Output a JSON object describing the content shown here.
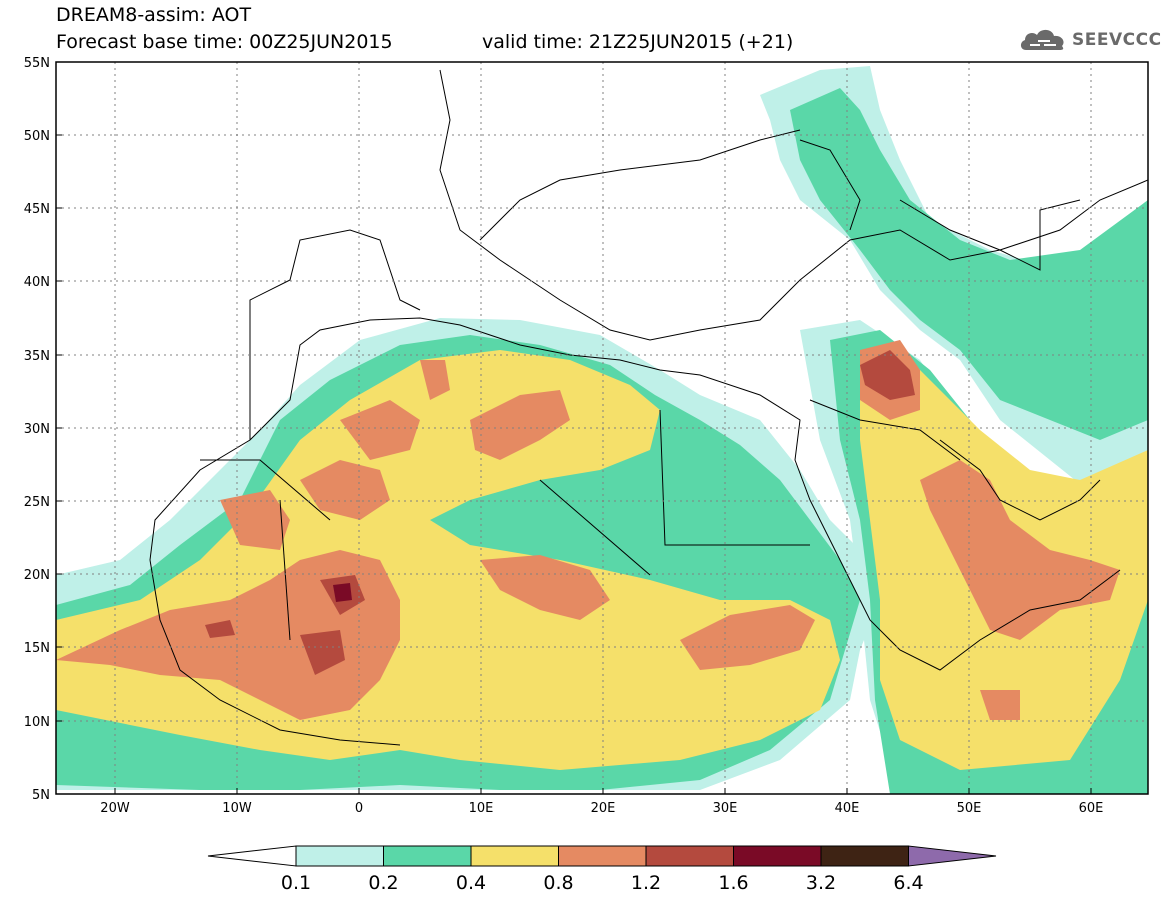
{
  "title": {
    "line1": "DREAM8-assim: AOT",
    "line2": "Forecast base time: 00Z25JUN2015",
    "valid": "valid time: 21Z25JUN2015 (+21)"
  },
  "logo": {
    "text": "SEEVCCC",
    "icon": "cloud-icon"
  },
  "axes": {
    "lat_labels": [
      "55N",
      "50N",
      "45N",
      "40N",
      "35N",
      "30N",
      "25N",
      "20N",
      "15N",
      "10N",
      "5N"
    ],
    "lon_labels": [
      "20W",
      "10W",
      "0",
      "10E",
      "20E",
      "30E",
      "40E",
      "50E",
      "60E"
    ],
    "lat_range": [
      5,
      55
    ],
    "lon_range": [
      -25,
      65
    ]
  },
  "colorbar": {
    "labels": [
      "0.1",
      "0.2",
      "0.4",
      "0.8",
      "1.2",
      "1.6",
      "3.2",
      "6.4"
    ],
    "colors": [
      "#bff0e8",
      "#5ad7a8",
      "#f5e06a",
      "#e58a62",
      "#b44a3e",
      "#7a0a26",
      "#3e2314",
      "#8e6aab"
    ]
  },
  "field_colors": {
    "c01": "#bff0e8",
    "c02": "#5ad7a8",
    "c04": "#f5e06a",
    "c08": "#e58a62",
    "c12": "#b44a3e",
    "c16": "#7a0a26"
  }
}
